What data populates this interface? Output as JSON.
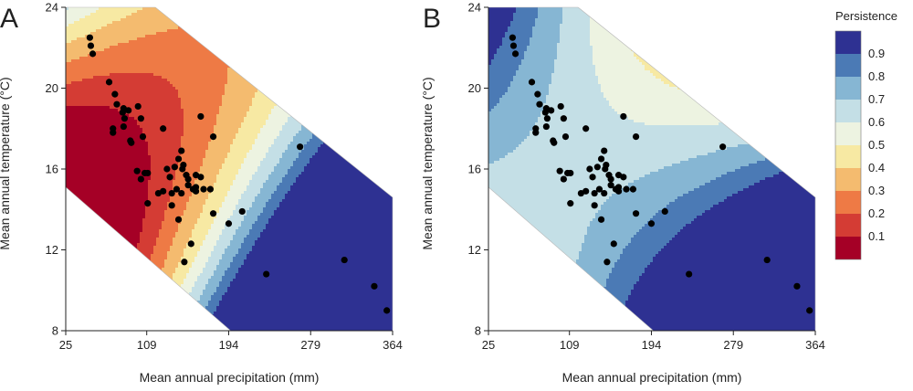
{
  "chart_data": [
    {
      "type": "heatmap",
      "panel_label": "A",
      "xlabel": "Mean annual precipitation (mm)",
      "ylabel": "Mean annual temperature (°C)",
      "xlim": [
        25,
        364
      ],
      "ylim": [
        8,
        24
      ],
      "x_ticks": [
        "25",
        "109",
        "194",
        "279",
        "364"
      ],
      "y_ticks": [
        "8",
        "12",
        "16",
        "20",
        "24"
      ],
      "surface": {
        "z0": 0.34,
        "ax": 0.0046,
        "by": -0.0385,
        "cxy": -0.00062,
        "ax2": 1.07e-05,
        "by2": 0.00466,
        "x0": 173,
        "y0": 16
      },
      "points": [
        [
          50,
          22.5
        ],
        [
          51,
          22.1
        ],
        [
          53,
          21.7
        ],
        [
          70,
          20.3
        ],
        [
          76,
          19.7
        ],
        [
          78,
          19.2
        ],
        [
          85,
          19.0
        ],
        [
          84,
          18.8
        ],
        [
          90,
          18.9
        ],
        [
          100,
          19.1
        ],
        [
          86,
          18.5
        ],
        [
          85,
          18.1
        ],
        [
          103,
          18.5
        ],
        [
          74,
          18.0
        ],
        [
          74,
          17.8
        ],
        [
          92,
          17.4
        ],
        [
          93,
          17.3
        ],
        [
          105,
          17.6
        ],
        [
          126,
          18.0
        ],
        [
          165,
          18.6
        ],
        [
          178,
          17.6
        ],
        [
          145,
          16.9
        ],
        [
          142,
          16.5
        ],
        [
          138,
          16.1
        ],
        [
          130,
          16.0
        ],
        [
          147,
          16.2
        ],
        [
          146,
          16.0
        ],
        [
          99,
          15.9
        ],
        [
          103,
          15.5
        ],
        [
          107,
          15.8
        ],
        [
          110,
          15.8
        ],
        [
          133,
          15.6
        ],
        [
          150,
          15.7
        ],
        [
          152,
          15.5
        ],
        [
          160,
          15.7
        ],
        [
          165,
          15.6
        ],
        [
          152,
          15.2
        ],
        [
          157,
          15.0
        ],
        [
          160,
          15.1
        ],
        [
          168,
          15.0
        ],
        [
          175,
          15.0
        ],
        [
          140,
          15.0
        ],
        [
          135,
          14.8
        ],
        [
          126,
          14.9
        ],
        [
          121,
          14.8
        ],
        [
          145,
          14.8
        ],
        [
          160,
          14.9
        ],
        [
          110,
          14.3
        ],
        [
          135,
          14.2
        ],
        [
          178,
          13.8
        ],
        [
          194,
          13.3
        ],
        [
          142,
          13.5
        ],
        [
          155,
          12.3
        ],
        [
          148,
          11.4
        ],
        [
          233,
          10.8
        ],
        [
          268,
          17.1
        ],
        [
          314,
          11.5
        ],
        [
          345,
          10.2
        ],
        [
          358,
          9.0
        ],
        [
          208,
          13.9
        ]
      ]
    },
    {
      "type": "heatmap",
      "panel_label": "B",
      "xlabel": "Mean annual precipitation (mm)",
      "ylabel": "Mean annual temperature (°C)",
      "xlim": [
        25,
        364
      ],
      "ylim": [
        8,
        24
      ],
      "x_ticks": [
        "25",
        "109",
        "194",
        "279",
        "364"
      ],
      "y_ticks": [
        "8",
        "12",
        "16",
        "20",
        "24"
      ],
      "surface": {
        "z0": 0.685,
        "ax": 0.0007,
        "by": -0.039,
        "cxy": -0.00048,
        "ax2": 4.7e-06,
        "by2": 0.00055,
        "x0": 185,
        "y0": 16
      },
      "points": [
        [
          50,
          22.5
        ],
        [
          51,
          22.1
        ],
        [
          53,
          21.7
        ],
        [
          70,
          20.3
        ],
        [
          76,
          19.7
        ],
        [
          78,
          19.2
        ],
        [
          85,
          19.0
        ],
        [
          84,
          18.8
        ],
        [
          90,
          18.9
        ],
        [
          100,
          19.1
        ],
        [
          86,
          18.5
        ],
        [
          85,
          18.1
        ],
        [
          103,
          18.5
        ],
        [
          74,
          18.0
        ],
        [
          74,
          17.8
        ],
        [
          92,
          17.4
        ],
        [
          93,
          17.3
        ],
        [
          105,
          17.6
        ],
        [
          126,
          18.0
        ],
        [
          165,
          18.6
        ],
        [
          178,
          17.6
        ],
        [
          145,
          16.9
        ],
        [
          142,
          16.5
        ],
        [
          138,
          16.1
        ],
        [
          130,
          16.0
        ],
        [
          147,
          16.2
        ],
        [
          146,
          16.0
        ],
        [
          99,
          15.9
        ],
        [
          103,
          15.5
        ],
        [
          107,
          15.8
        ],
        [
          110,
          15.8
        ],
        [
          133,
          15.6
        ],
        [
          150,
          15.7
        ],
        [
          152,
          15.5
        ],
        [
          160,
          15.7
        ],
        [
          165,
          15.6
        ],
        [
          152,
          15.2
        ],
        [
          157,
          15.0
        ],
        [
          160,
          15.1
        ],
        [
          168,
          15.0
        ],
        [
          175,
          15.0
        ],
        [
          140,
          15.0
        ],
        [
          135,
          14.8
        ],
        [
          126,
          14.9
        ],
        [
          121,
          14.8
        ],
        [
          145,
          14.8
        ],
        [
          160,
          14.9
        ],
        [
          110,
          14.3
        ],
        [
          135,
          14.2
        ],
        [
          178,
          13.8
        ],
        [
          194,
          13.3
        ],
        [
          142,
          13.5
        ],
        [
          155,
          12.3
        ],
        [
          148,
          11.4
        ],
        [
          233,
          10.8
        ],
        [
          268,
          17.1
        ],
        [
          314,
          11.5
        ],
        [
          345,
          10.2
        ],
        [
          358,
          9.0
        ],
        [
          208,
          13.9
        ]
      ]
    }
  ],
  "legend": {
    "title": "Persistence",
    "bins": [
      {
        "label": "0.9",
        "color": "#2e3192"
      },
      {
        "label": "0.8",
        "color": "#4b7ab5"
      },
      {
        "label": "0.7",
        "color": "#86b6d3"
      },
      {
        "label": "0.6",
        "color": "#c4dfe6"
      },
      {
        "label": "0.5",
        "color": "#edf3e1"
      },
      {
        "label": "0.4",
        "color": "#f7e9a3"
      },
      {
        "label": "0.3",
        "color": "#f4bb6f"
      },
      {
        "label": "0.2",
        "color": "#ee7a45"
      },
      {
        "label": "0.1",
        "color": "#d43c34"
      },
      {
        "label": "",
        "color": "#a50026"
      }
    ]
  }
}
